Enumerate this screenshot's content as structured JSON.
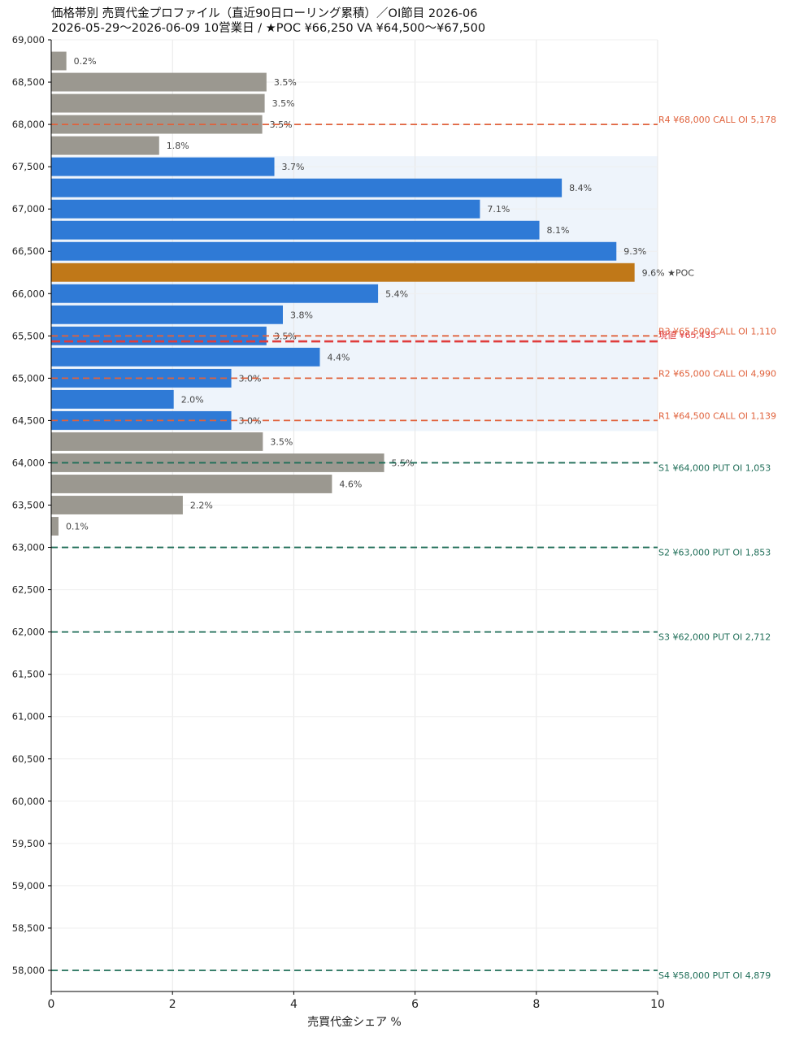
{
  "title_line1": "価格帯別 売買代金プロファイル（直近90日ローリング累積）／OI節目 2026-06",
  "title_line2": "2026-05-29〜2026-06-09  10営業日  /  ★POC ¥66,250   VA ¥64,500〜¥67,500",
  "chart_data": {
    "type": "bar",
    "orientation": "horizontal",
    "xlabel": "売買代金シェア %",
    "ylabel": "",
    "xlim": [
      0,
      10
    ],
    "x_ticks": [
      0,
      2,
      4,
      6,
      8,
      10
    ],
    "ylim": [
      57750,
      69000
    ],
    "y_ticks": [
      58000,
      58500,
      59000,
      59500,
      60000,
      60500,
      61000,
      61500,
      62000,
      62500,
      63000,
      63500,
      64000,
      64500,
      65000,
      65500,
      66000,
      66500,
      67000,
      67500,
      68000,
      68500,
      69000
    ],
    "y_tick_labels": [
      "58,000",
      "58,500",
      "59,000",
      "59,500",
      "60,000",
      "60,500",
      "61,000",
      "61,500",
      "62,000",
      "62,500",
      "63,000",
      "63,500",
      "64,000",
      "64,500",
      "65,000",
      "65,500",
      "66,000",
      "66,500",
      "67,000",
      "67,500",
      "68,000",
      "68,500",
      "69,000"
    ],
    "bar_step": 250,
    "grid": true,
    "colors": {
      "outside": "#9b9890",
      "value_area": "#2f7ad6",
      "poc": "#c07818",
      "va_band": "#eef4fb",
      "resistance": "#e0623c",
      "support": "#1f6e58",
      "current": "#e03c3c"
    },
    "bars": [
      {
        "price": 68750,
        "value": 0.25,
        "label": "0.2%",
        "zone": "outside"
      },
      {
        "price": 68500,
        "value": 3.55,
        "label": "3.5%",
        "zone": "outside"
      },
      {
        "price": 68250,
        "value": 3.52,
        "label": "3.5%",
        "zone": "outside"
      },
      {
        "price": 68000,
        "value": 3.48,
        "label": "3.5%",
        "zone": "outside"
      },
      {
        "price": 67750,
        "value": 1.78,
        "label": "1.8%",
        "zone": "outside"
      },
      {
        "price": 67500,
        "value": 3.68,
        "label": "3.7%",
        "zone": "va"
      },
      {
        "price": 67250,
        "value": 8.42,
        "label": "8.4%",
        "zone": "va"
      },
      {
        "price": 67000,
        "value": 7.07,
        "label": "7.1%",
        "zone": "va"
      },
      {
        "price": 66750,
        "value": 8.05,
        "label": "8.1%",
        "zone": "va"
      },
      {
        "price": 66500,
        "value": 9.32,
        "label": "9.3%",
        "zone": "va"
      },
      {
        "price": 66250,
        "value": 9.62,
        "label": "9.6%  ★POC",
        "zone": "poc"
      },
      {
        "price": 66000,
        "value": 5.39,
        "label": "5.4%",
        "zone": "va"
      },
      {
        "price": 65750,
        "value": 3.82,
        "label": "3.8%",
        "zone": "va"
      },
      {
        "price": 65500,
        "value": 3.55,
        "label": "3.5%",
        "zone": "va"
      },
      {
        "price": 65250,
        "value": 4.43,
        "label": "4.4%",
        "zone": "va"
      },
      {
        "price": 65000,
        "value": 2.97,
        "label": "3.0%",
        "zone": "va"
      },
      {
        "price": 64750,
        "value": 2.02,
        "label": "2.0%",
        "zone": "va"
      },
      {
        "price": 64500,
        "value": 2.97,
        "label": "3.0%",
        "zone": "va"
      },
      {
        "price": 64250,
        "value": 3.49,
        "label": "3.5%",
        "zone": "outside"
      },
      {
        "price": 64000,
        "value": 5.49,
        "label": "5.5%",
        "zone": "outside"
      },
      {
        "price": 63750,
        "value": 4.63,
        "label": "4.6%",
        "zone": "outside"
      },
      {
        "price": 63500,
        "value": 2.17,
        "label": "2.2%",
        "zone": "outside"
      },
      {
        "price": 63250,
        "value": 0.12,
        "label": "0.1%",
        "zone": "outside"
      }
    ],
    "value_area": [
      64500,
      67500
    ],
    "levels": [
      {
        "price": 68000,
        "label": "R4 ¥68,000  CALL OI 5,178",
        "kind": "resistance"
      },
      {
        "price": 65500,
        "label": "R3 ¥65,500  CALL OI 1,110",
        "kind": "resistance"
      },
      {
        "price": 65000,
        "label": "R2 ¥65,000  CALL OI 4,990",
        "kind": "resistance"
      },
      {
        "price": 64500,
        "label": "R1 ¥64,500  CALL OI 1,139",
        "kind": "resistance"
      },
      {
        "price": 64000,
        "label": "S1 ¥64,000  PUT OI 1,053",
        "kind": "support"
      },
      {
        "price": 63000,
        "label": "S2 ¥63,000  PUT OI 1,853",
        "kind": "support"
      },
      {
        "price": 62000,
        "label": "S3 ¥62,000  PUT OI 2,712",
        "kind": "support"
      },
      {
        "price": 58000,
        "label": "S4 ¥58,000  PUT OI 4,879",
        "kind": "support"
      }
    ],
    "current_price": {
      "price": 65435,
      "label": "現値 ¥65,435"
    }
  }
}
